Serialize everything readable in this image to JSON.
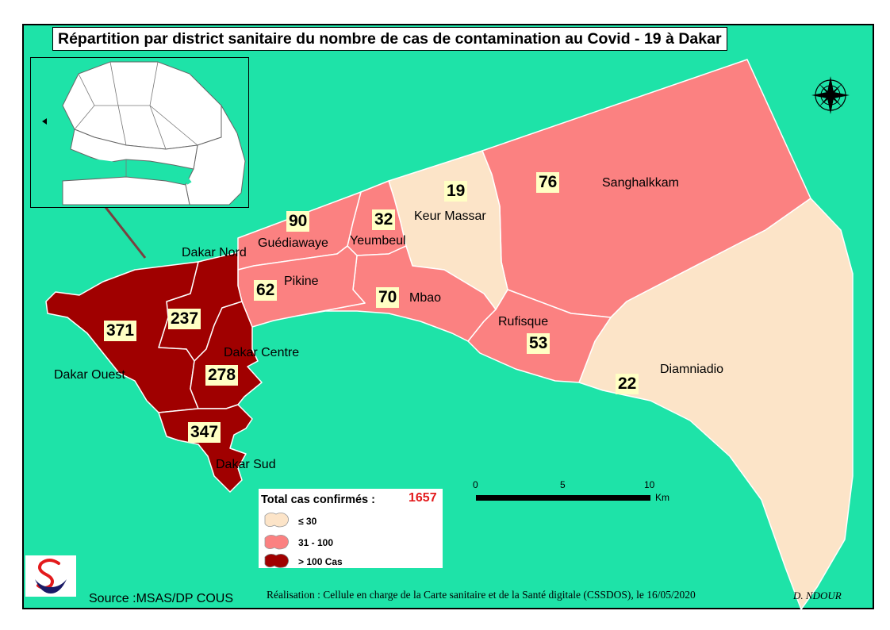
{
  "title": "Répartition par district sanitaire du nombre de cas de contamination au Covid - 19 à Dakar",
  "colors": {
    "sea": "#1ee3a8",
    "low": "#fce4c8",
    "mid": "#fb8181",
    "high": "#a00000",
    "label_bg": "#ffffc4",
    "total": "#e31a1c"
  },
  "districts": [
    {
      "name": "Dakar Ouest",
      "cases": "371",
      "class": "high"
    },
    {
      "name": "Dakar Nord",
      "cases": "237",
      "class": "high"
    },
    {
      "name": "Dakar Centre",
      "cases": "278",
      "class": "high"
    },
    {
      "name": "Dakar Sud",
      "cases": "347",
      "class": "high"
    },
    {
      "name": "Guédiawaye",
      "cases": "90",
      "class": "mid"
    },
    {
      "name": "Pikine",
      "cases": "62",
      "class": "mid"
    },
    {
      "name": "Yeumbeul",
      "cases": "32",
      "class": "mid"
    },
    {
      "name": "Keur Massar",
      "cases": "19",
      "class": "low"
    },
    {
      "name": "Mbao",
      "cases": "70",
      "class": "mid"
    },
    {
      "name": "Rufisque",
      "cases": "53",
      "class": "mid"
    },
    {
      "name": "Sanghalkkam",
      "cases": "76",
      "class": "mid"
    },
    {
      "name": "Diamniadio",
      "cases": "22",
      "class": "low"
    }
  ],
  "legend": {
    "title": "Total cas confirmés :",
    "total": "1657",
    "items": [
      {
        "label": "≤ 30",
        "class": "low"
      },
      {
        "label": "31 - 100",
        "class": "mid"
      },
      {
        "label": "> 100 Cas",
        "class": "high"
      }
    ]
  },
  "scale": {
    "ticks": [
      "0",
      "5",
      "10"
    ],
    "unit": "Km"
  },
  "source": "Source :MSAS/DP COUS",
  "credit": "Réalisation : Cellule en charge de la Carte sanitaire et de la Santé digitale (CSSDOS), le 16/05/2020",
  "author": "D. NDOUR",
  "icons": {
    "north_arrow": "compass-rose-icon",
    "logo": "ministry-logo-icon"
  }
}
